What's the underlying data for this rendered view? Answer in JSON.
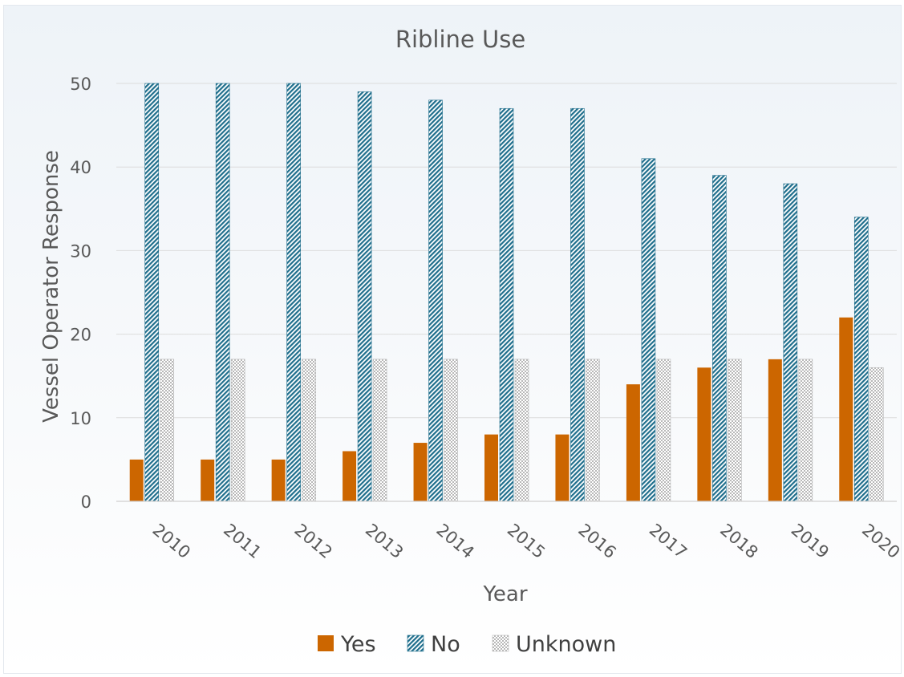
{
  "chart_data": {
    "type": "bar",
    "title": "Ribline Use",
    "xlabel": "Year",
    "ylabel": "Vessel Operator Response",
    "categories": [
      "2010",
      "2011",
      "2012",
      "2013",
      "2014",
      "2015",
      "2016",
      "2017",
      "2018",
      "2019",
      "2020"
    ],
    "ylim": [
      0,
      50
    ],
    "yticks": [
      0,
      10,
      20,
      30,
      40,
      50
    ],
    "grid": true,
    "legend_position": "bottom",
    "series": [
      {
        "name": "Yes",
        "color": "#cc6600",
        "pattern": "solid",
        "values": [
          5,
          5,
          5,
          6,
          7,
          8,
          8,
          14,
          16,
          17,
          22
        ]
      },
      {
        "name": "No",
        "color": "#1f6e8c",
        "pattern": "diagonal-hatch",
        "values": [
          50,
          50,
          50,
          49,
          48,
          47,
          47,
          41,
          39,
          38,
          34
        ]
      },
      {
        "name": "Unknown",
        "color": "#b8b8b8",
        "pattern": "crosshatch",
        "values": [
          17,
          17,
          17,
          17,
          17,
          17,
          17,
          17,
          17,
          17,
          16
        ]
      }
    ]
  }
}
